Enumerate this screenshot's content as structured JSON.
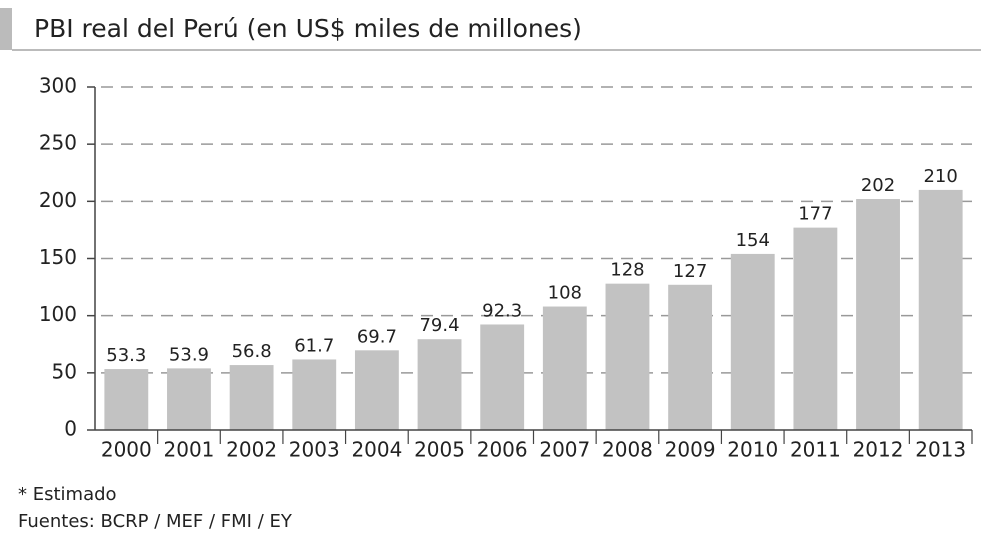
{
  "chart_data": {
    "type": "bar",
    "title": "PBI real del Perú (en US$ miles de millones)",
    "categories": [
      "2000",
      "2001",
      "2002",
      "2003",
      "2004",
      "2005",
      "2006",
      "2007",
      "2008",
      "2009",
      "2010",
      "2011",
      "2012",
      "2013"
    ],
    "values": [
      53.3,
      53.9,
      56.8,
      61.7,
      69.7,
      79.4,
      92.3,
      108,
      128,
      127,
      154,
      177,
      202,
      210
    ],
    "color": "#c2c2c2",
    "ylim": [
      0,
      300
    ],
    "yticks": [
      0,
      50,
      100,
      150,
      200,
      250,
      300
    ],
    "grid": true,
    "footnotes": [
      "* Estimado",
      "Fuentes: BCRP / MEF / FMI / EY"
    ]
  }
}
